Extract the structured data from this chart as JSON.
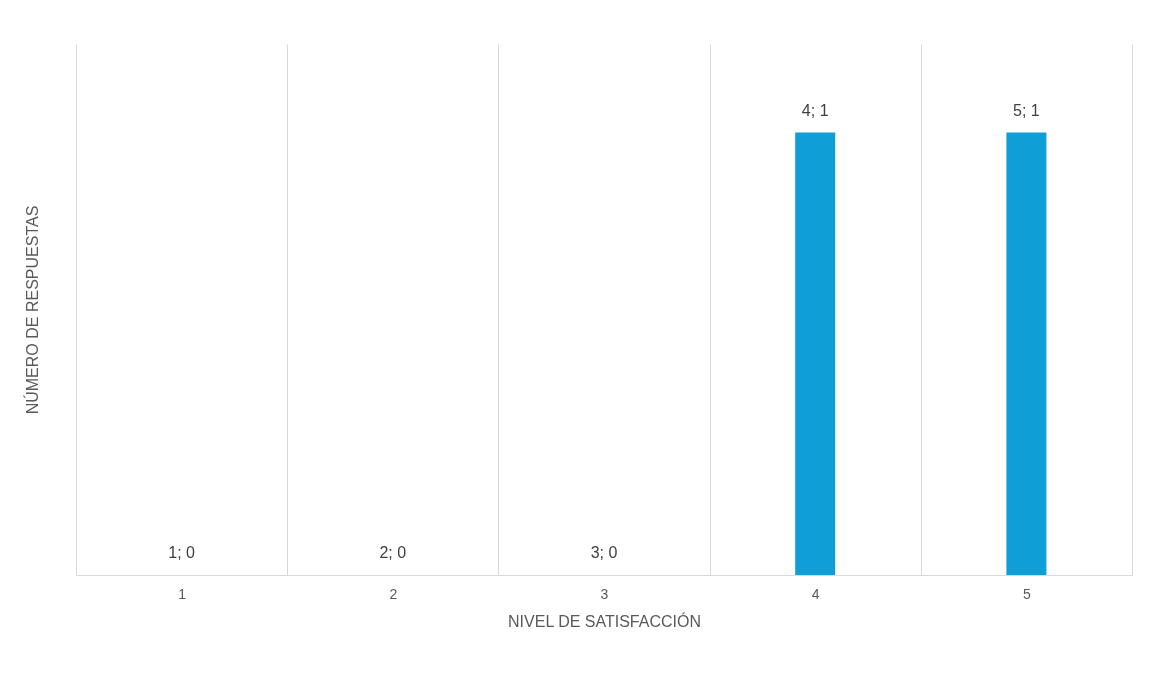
{
  "chart_data": {
    "type": "bar",
    "xlabel": "NIVEL DE SATISFACCIÓN",
    "ylabel": "NÚMERO DE RESPUESTAS",
    "categories": [
      "1",
      "2",
      "3",
      "4",
      "5"
    ],
    "values": [
      0,
      0,
      0,
      1,
      1
    ],
    "value_labels": [
      "1; 0",
      "2; 0",
      "3; 0",
      "4; 1",
      "5; 1"
    ],
    "color": "#0f9ed5",
    "ylim": [
      0,
      1.2
    ],
    "grid": "x"
  }
}
